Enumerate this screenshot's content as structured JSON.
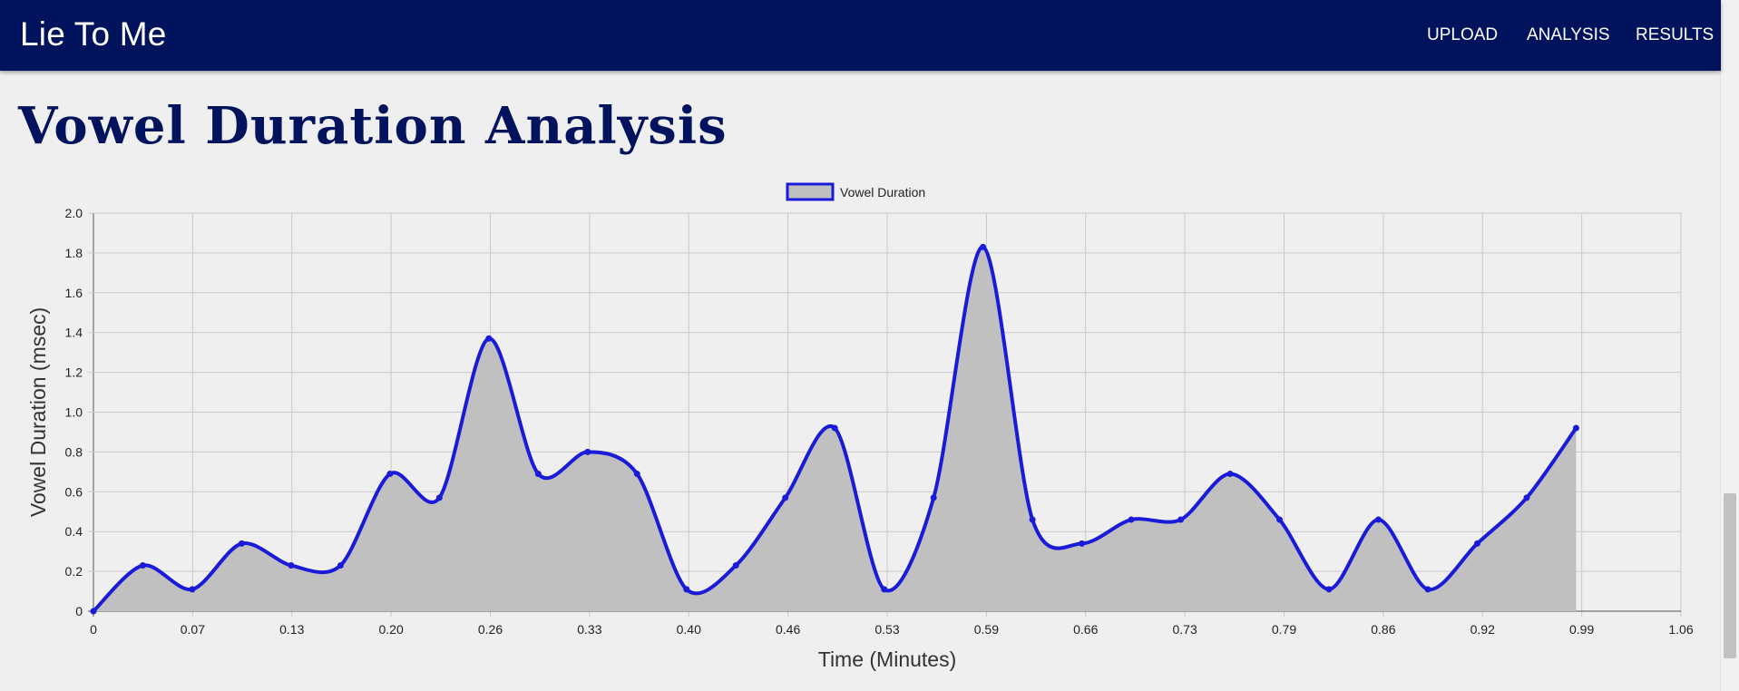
{
  "app": {
    "title": "Lie To Me"
  },
  "nav": {
    "items": [
      {
        "label": "UPLOAD"
      },
      {
        "label": "ANALYSIS"
      },
      {
        "label": "RESULTS"
      }
    ]
  },
  "page": {
    "heading": "Vowel Duration Analysis"
  },
  "colors": {
    "navbar": "#02135e",
    "line": "#1a1ad9",
    "fill": "#c0c0c0",
    "heading": "#02135e"
  },
  "chart_data": {
    "type": "line",
    "title": "",
    "xlabel": "Time (Minutes)",
    "ylabel": "Vowel Duration (msec)",
    "xlim": [
      0,
      1.06
    ],
    "ylim": [
      0,
      2.0
    ],
    "x_tick_labels": [
      "0",
      "0.07",
      "0.13",
      "0.20",
      "0.26",
      "0.33",
      "0.40",
      "0.46",
      "0.53",
      "0.59",
      "0.66",
      "0.73",
      "0.79",
      "0.86",
      "0.92",
      "0.99",
      "1.06"
    ],
    "y_tick_labels": [
      "0",
      "0.2",
      "0.4",
      "0.6",
      "0.8",
      "1.0",
      "1.2",
      "1.4",
      "1.6",
      "1.8",
      "2.0"
    ],
    "grid": true,
    "legend": "top-center",
    "series": [
      {
        "name": "Vowel Duration",
        "x": [
          0,
          0.033,
          0.066,
          0.099,
          0.132,
          0.165,
          0.198,
          0.231,
          0.264,
          0.297,
          0.33,
          0.363,
          0.396,
          0.429,
          0.462,
          0.495,
          0.528,
          0.561,
          0.594,
          0.627,
          0.66,
          0.693,
          0.726,
          0.759,
          0.792,
          0.825,
          0.858,
          0.891,
          0.924,
          0.957,
          0.99
        ],
        "values": [
          0,
          0.23,
          0.11,
          0.34,
          0.23,
          0.23,
          0.69,
          0.57,
          1.37,
          0.69,
          0.8,
          0.69,
          0.11,
          0.23,
          0.57,
          0.92,
          0.11,
          0.57,
          1.83,
          0.46,
          0.34,
          0.46,
          0.46,
          0.69,
          0.46,
          0.11,
          0.46,
          0.11,
          0.34,
          0.57,
          0.92
        ]
      }
    ]
  }
}
